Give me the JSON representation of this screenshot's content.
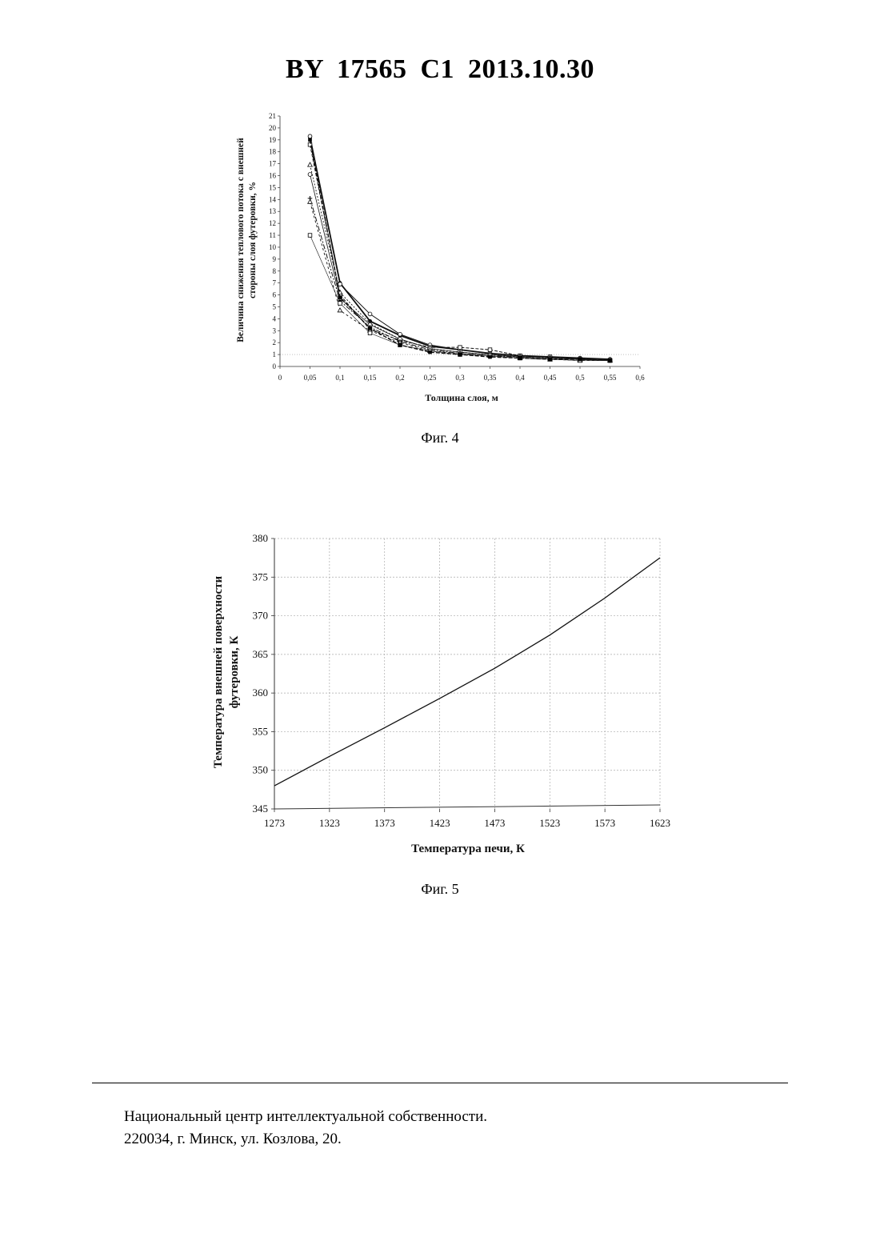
{
  "header": {
    "title": "BY  17565  C1  2013.10.30"
  },
  "figures": [
    {
      "caption": "Фиг. 4",
      "chart_data": {
        "type": "line",
        "title": "",
        "xlabel": "Толщина слоя, м",
        "ylabel_lines": [
          "Величина снижения теплового потока с внешней",
          "стороны слоя футеровки, %"
        ],
        "xlim": [
          0,
          0.6
        ],
        "ylim": [
          0,
          21
        ],
        "x_ticks": [
          "0",
          "0,05",
          "0,1",
          "0,15",
          "0,2",
          "0,25",
          "0,3",
          "0,35",
          "0,4",
          "0,45",
          "0,5",
          "0,55",
          "0,6"
        ],
        "y_ticks": [
          "0",
          "1",
          "2",
          "3",
          "4",
          "5",
          "6",
          "7",
          "8",
          "9",
          "10",
          "11",
          "12",
          "13",
          "14",
          "15",
          "16",
          "17",
          "18",
          "19",
          "20",
          "21"
        ],
        "reference_line_y": 1,
        "x": [
          0.05,
          0.1,
          0.15,
          0.2,
          0.25,
          0.3,
          0.35,
          0.4,
          0.45,
          0.5,
          0.55
        ],
        "series": [
          {
            "marker": "filled-circle",
            "values": [
              19.2,
              7.0,
              3.8,
              2.6,
              1.7,
              1.4,
              1.1,
              0.9,
              0.8,
              0.7,
              0.6
            ]
          },
          {
            "marker": "open-circle",
            "values": [
              19.3,
              6.9,
              4.4,
              2.7,
              1.8,
              1.4,
              1.1,
              0.9,
              0.8,
              0.7,
              0.6
            ]
          },
          {
            "marker": "open-square",
            "values": [
              18.6,
              6.0,
              3.1,
              2.2,
              1.6,
              1.6,
              1.4,
              0.9,
              0.8,
              0.6,
              0.5
            ]
          },
          {
            "marker": "open-triangle",
            "values": [
              16.9,
              6.2,
              3.6,
              2.3,
              1.5,
              1.2,
              1.0,
              0.8,
              0.7,
              0.6,
              0.5
            ]
          },
          {
            "marker": "open-circle",
            "values": [
              16.1,
              5.7,
              3.5,
              2.3,
              1.5,
              1.2,
              1.0,
              0.8,
              0.7,
              0.6,
              0.5
            ]
          },
          {
            "marker": "plus",
            "values": [
              14.1,
              5.5,
              3.3,
              2.1,
              1.4,
              1.1,
              0.9,
              0.8,
              0.7,
              0.6,
              0.5
            ]
          },
          {
            "marker": "open-triangle",
            "values": [
              13.8,
              4.7,
              3.0,
              2.0,
              1.3,
              1.1,
              0.9,
              0.7,
              0.6,
              0.5,
              0.5
            ]
          },
          {
            "marker": "open-square",
            "values": [
              11.0,
              5.3,
              2.8,
              1.8,
              1.3,
              1.0,
              0.9,
              0.7,
              0.6,
              0.5,
              0.5
            ]
          },
          {
            "marker": "filled-square",
            "values": [
              19.0,
              5.8,
              3.2,
              1.8,
              1.2,
              1.0,
              0.8,
              0.7,
              0.6,
              0.6,
              0.5
            ]
          }
        ]
      }
    },
    {
      "caption": "Фиг. 5",
      "chart_data": {
        "type": "line",
        "title": "",
        "xlabel": "Температура печи, К",
        "ylabel_lines": [
          "Температура внешней поверхности",
          "футеровки, К"
        ],
        "xlim": [
          1273,
          1623
        ],
        "ylim": [
          345,
          380
        ],
        "grid": true,
        "x_ticks": [
          "1273",
          "1323",
          "1373",
          "1423",
          "1473",
          "1523",
          "1573",
          "1623"
        ],
        "y_ticks": [
          "345",
          "350",
          "355",
          "360",
          "365",
          "370",
          "375",
          "380"
        ],
        "x": [
          1273,
          1323,
          1373,
          1423,
          1473,
          1523,
          1573,
          1623
        ],
        "series": [
          {
            "values": [
              348.0,
              351.8,
              355.5,
              359.3,
              363.2,
              367.5,
              372.3,
              377.5
            ]
          }
        ]
      }
    }
  ],
  "footer": {
    "line1": "Национальный центр интеллектуальной собственности.",
    "line2": "220034, г. Минск, ул. Козлова, 20."
  }
}
